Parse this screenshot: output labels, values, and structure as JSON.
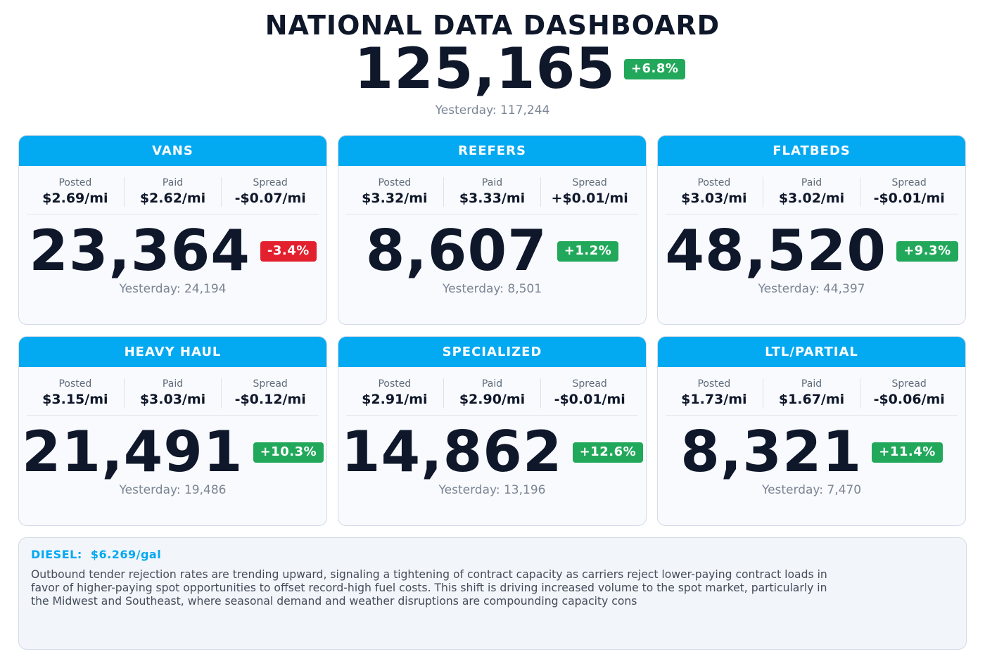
{
  "header": {
    "title": "NATIONAL DATA DASHBOARD",
    "total": "125,165",
    "change": "+6.8%",
    "change_direction": "up",
    "yesterday": "Yesterday: 117,244"
  },
  "colors": {
    "accent": "#03a9f1",
    "positive": "#22a85a",
    "negative": "#e3202e",
    "text": "#0f172a"
  },
  "metric_labels": {
    "posted": "Posted",
    "paid": "Paid",
    "spread": "Spread"
  },
  "cards": [
    {
      "title": "VANS",
      "posted": "$2.69/mi",
      "paid": "$2.62/mi",
      "spread": "-$0.07/mi",
      "count": "23,364",
      "change": "-3.4%",
      "change_direction": "down",
      "yesterday": "Yesterday: 24,194"
    },
    {
      "title": "REEFERS",
      "posted": "$3.32/mi",
      "paid": "$3.33/mi",
      "spread": "+$0.01/mi",
      "count": "8,607",
      "change": "+1.2%",
      "change_direction": "up",
      "yesterday": "Yesterday: 8,501"
    },
    {
      "title": "FLATBEDS",
      "posted": "$3.03/mi",
      "paid": "$3.02/mi",
      "spread": "-$0.01/mi",
      "count": "48,520",
      "change": "+9.3%",
      "change_direction": "up",
      "yesterday": "Yesterday: 44,397"
    },
    {
      "title": "HEAVY HAUL",
      "posted": "$3.15/mi",
      "paid": "$3.03/mi",
      "spread": "-$0.12/mi",
      "count": "21,491",
      "change": "+10.3%",
      "change_direction": "up",
      "yesterday": "Yesterday: 19,486"
    },
    {
      "title": "SPECIALIZED",
      "posted": "$2.91/mi",
      "paid": "$2.90/mi",
      "spread": "-$0.01/mi",
      "count": "14,862",
      "change": "+12.6%",
      "change_direction": "up",
      "yesterday": "Yesterday: 13,196"
    },
    {
      "title": "LTL/PARTIAL",
      "posted": "$1.73/mi",
      "paid": "$1.67/mi",
      "spread": "-$0.06/mi",
      "count": "8,321",
      "change": "+11.4%",
      "change_direction": "up",
      "yesterday": "Yesterday: 7,470"
    }
  ],
  "note": {
    "diesel_label": "DIESEL:",
    "diesel_value": "$6.269/gal",
    "text": "Outbound tender rejection rates are trending upward, signaling a tightening of contract capacity as carriers reject lower-paying contract loads in favor of higher-paying spot opportunities to offset record-high fuel costs. This shift is driving increased volume to the spot market, particularly in the Midwest and Southeast, where seasonal demand and weather disruptions are compounding capacity cons"
  }
}
